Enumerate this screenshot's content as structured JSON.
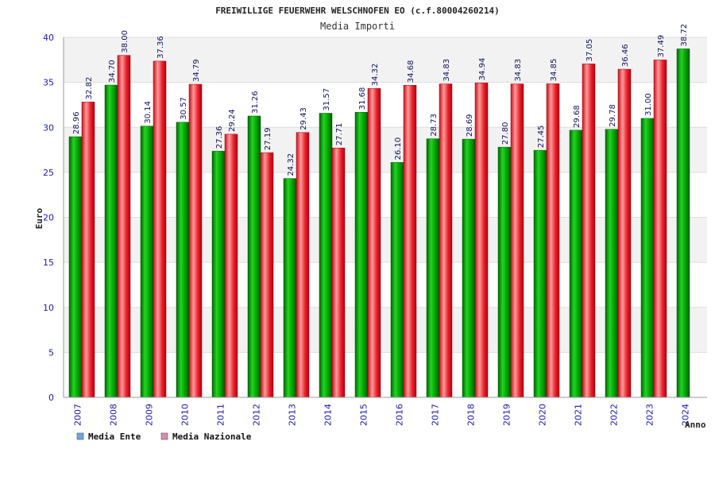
{
  "chart_data": {
    "type": "bar",
    "title": "FREIWILLIGE FEUERWEHR WELSCHNOFEN EO (c.f.80004260214)",
    "subtitle": "Media Importi",
    "xlabel": "Anno",
    "ylabel": "Euro",
    "ylim": [
      0,
      40
    ],
    "yticks": [
      "0",
      "5",
      "10",
      "15",
      "20",
      "25",
      "30",
      "35",
      "40"
    ],
    "grid": true,
    "legend_position": "bottom-left",
    "categories": [
      "2007",
      "2008",
      "2009",
      "2010",
      "2011",
      "2012",
      "2013",
      "2014",
      "2015",
      "2016",
      "2017",
      "2018",
      "2019",
      "2020",
      "2021",
      "2022",
      "2023",
      "2024"
    ],
    "series": [
      {
        "name": "Media Ente",
        "color": "#00a000",
        "legend_color": "#6fa8dc",
        "values": [
          28.96,
          34.7,
          30.14,
          30.57,
          27.36,
          31.26,
          24.32,
          31.57,
          31.68,
          26.1,
          28.73,
          28.69,
          27.8,
          27.45,
          29.68,
          29.78,
          31.0,
          38.72
        ],
        "labels": [
          "28.96",
          "34.70",
          "30.14",
          "30.57",
          "27.36",
          "31.26",
          "24.32",
          "31.57",
          "31.68",
          "26.10",
          "28.73",
          "28.69",
          "27.80",
          "27.45",
          "29.68",
          "29.78",
          "31.00",
          "38.72"
        ]
      },
      {
        "name": "Media Nazionale",
        "color": "#e8202a",
        "legend_color": "#d98cb3",
        "values": [
          32.82,
          38.0,
          37.36,
          34.79,
          29.24,
          27.19,
          29.43,
          27.71,
          34.32,
          34.68,
          34.83,
          34.94,
          34.83,
          34.85,
          37.05,
          36.46,
          37.49,
          null
        ],
        "labels": [
          "32.82",
          "38.00",
          "37.36",
          "34.79",
          "29.24",
          "27.19",
          "29.43",
          "27.71",
          "34.32",
          "34.68",
          "34.83",
          "34.94",
          "34.83",
          "34.85",
          "37.05",
          "36.46",
          "37.49",
          null
        ]
      }
    ]
  }
}
